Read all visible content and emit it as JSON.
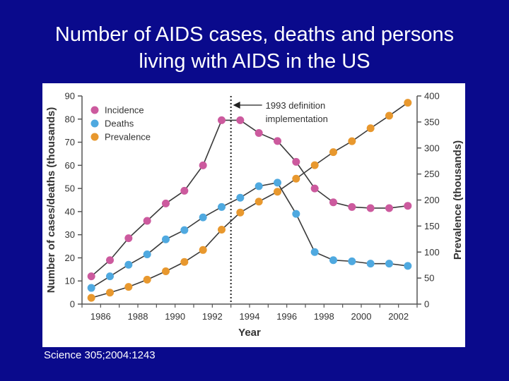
{
  "slide": {
    "title_line1": "Number of AIDS cases, deaths and persons",
    "title_line2": "living with AIDS in the US",
    "citation": "Science 305;2004:1243"
  },
  "colors": {
    "background": "#0a0a8c",
    "incidence": "#cc5a9e",
    "deaths": "#4fa9e0",
    "prevalence": "#e8982e"
  },
  "chart_data": {
    "type": "line",
    "title": "",
    "xlabel": "Year",
    "ylabel": "Number of cases/deaths (thousands)",
    "y2label": "Prevalence (thousands)",
    "x": [
      1985.5,
      1986.5,
      1987.5,
      1988.5,
      1989.5,
      1990.5,
      1991.5,
      1992.5,
      1993.5,
      1994.5,
      1995.5,
      1996.5,
      1997.5,
      1998.5,
      1999.5,
      2000.5,
      2001.5,
      2002.5
    ],
    "xlim": [
      1985,
      2003
    ],
    "xticks": [
      "1986",
      "1988",
      "1990",
      "1992",
      "1994",
      "1996",
      "1998",
      "2000",
      "2002"
    ],
    "ylim": [
      0,
      90
    ],
    "yticks": [
      "0",
      "10",
      "20",
      "30",
      "40",
      "50",
      "60",
      "70",
      "80",
      "90"
    ],
    "y2lim": [
      0,
      400
    ],
    "y2ticks": [
      "0",
      "50",
      "100",
      "150",
      "200",
      "250",
      "300",
      "350",
      "400"
    ],
    "series": [
      {
        "name": "Incidence",
        "axis": "left",
        "values": [
          12,
          19,
          28.5,
          36,
          43.5,
          49,
          60,
          79.5,
          79.5,
          74,
          70.5,
          61.5,
          50,
          44,
          42,
          41.5,
          41.5,
          42.5
        ]
      },
      {
        "name": "Deaths",
        "axis": "left",
        "values": [
          7,
          12,
          17,
          21.5,
          28,
          32,
          37.5,
          42,
          46,
          51,
          52.5,
          39,
          22.5,
          19,
          18.5,
          17.5,
          17.5,
          16.5
        ]
      },
      {
        "name": "Prevalence",
        "axis": "right",
        "values": [
          12,
          22,
          33,
          47,
          63,
          81,
          104,
          143,
          176,
          197,
          216,
          241,
          267,
          292,
          313,
          338,
          362,
          387
        ]
      }
    ],
    "annotations": [
      {
        "line1": "1993 definition",
        "line2": "implementation",
        "x": 1993
      }
    ],
    "legend_position": "top-left"
  }
}
